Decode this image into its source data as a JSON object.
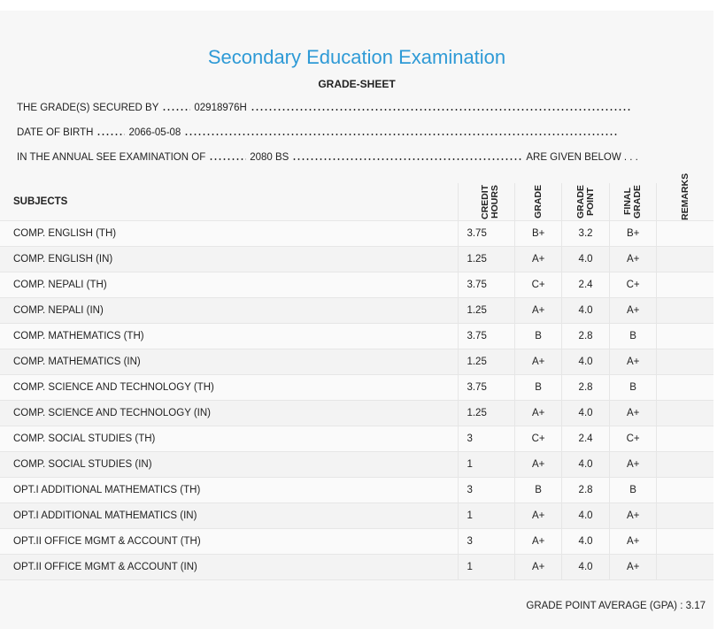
{
  "header": {
    "title": "Secondary Education Examination",
    "subtitle": "GRADE-SHEET"
  },
  "info": [
    {
      "label": "THE GRADE(S) SECURED BY",
      "value": "02918976H"
    },
    {
      "label": "DATE OF BIRTH",
      "value": "2066-05-08"
    },
    {
      "label": "IN THE ANNUAL SEE EXAMINATION OF",
      "value": "2080 BS",
      "suffix": "ARE GIVEN BELOW . . ."
    }
  ],
  "table": {
    "columns": [
      "SUBJECTS",
      "CREDIT HOURS",
      "GRADE",
      "GRADE POINT",
      "FINAL GRADE",
      "REMARKS"
    ],
    "rows": [
      [
        "COMP. ENGLISH (TH)",
        "3.75",
        "B+",
        "3.2",
        "B+"
      ],
      [
        "COMP. ENGLISH (IN)",
        "1.25",
        "A+",
        "4.0",
        "A+"
      ],
      [
        "COMP. NEPALI (TH)",
        "3.75",
        "C+",
        "2.4",
        "C+"
      ],
      [
        "COMP. NEPALI (IN)",
        "1.25",
        "A+",
        "4.0",
        "A+"
      ],
      [
        "COMP. MATHEMATICS (TH)",
        "3.75",
        "B",
        "2.8",
        "B"
      ],
      [
        "COMP. MATHEMATICS (IN)",
        "1.25",
        "A+",
        "4.0",
        "A+"
      ],
      [
        "COMP. SCIENCE AND TECHNOLOGY (TH)",
        "3.75",
        "B",
        "2.8",
        "B"
      ],
      [
        "COMP. SCIENCE AND TECHNOLOGY (IN)",
        "1.25",
        "A+",
        "4.0",
        "A+"
      ],
      [
        "COMP. SOCIAL STUDIES (TH)",
        "3",
        "C+",
        "2.4",
        "C+"
      ],
      [
        "COMP. SOCIAL STUDIES (IN)",
        "1",
        "A+",
        "4.0",
        "A+"
      ],
      [
        "OPT.I ADDITIONAL MATHEMATICS (TH)",
        "3",
        "B",
        "2.8",
        "B"
      ],
      [
        "OPT.I ADDITIONAL MATHEMATICS (IN)",
        "1",
        "A+",
        "4.0",
        "A+"
      ],
      [
        "OPT.II OFFICE MGMT & ACCOUNT (TH)",
        "3",
        "A+",
        "4.0",
        "A+"
      ],
      [
        "OPT.II OFFICE MGMT & ACCOUNT (IN)",
        "1",
        "A+",
        "4.0",
        "A+"
      ]
    ]
  },
  "footer": {
    "gpa_label": "GRADE POINT AVERAGE (GPA) :",
    "gpa": "3.17"
  }
}
